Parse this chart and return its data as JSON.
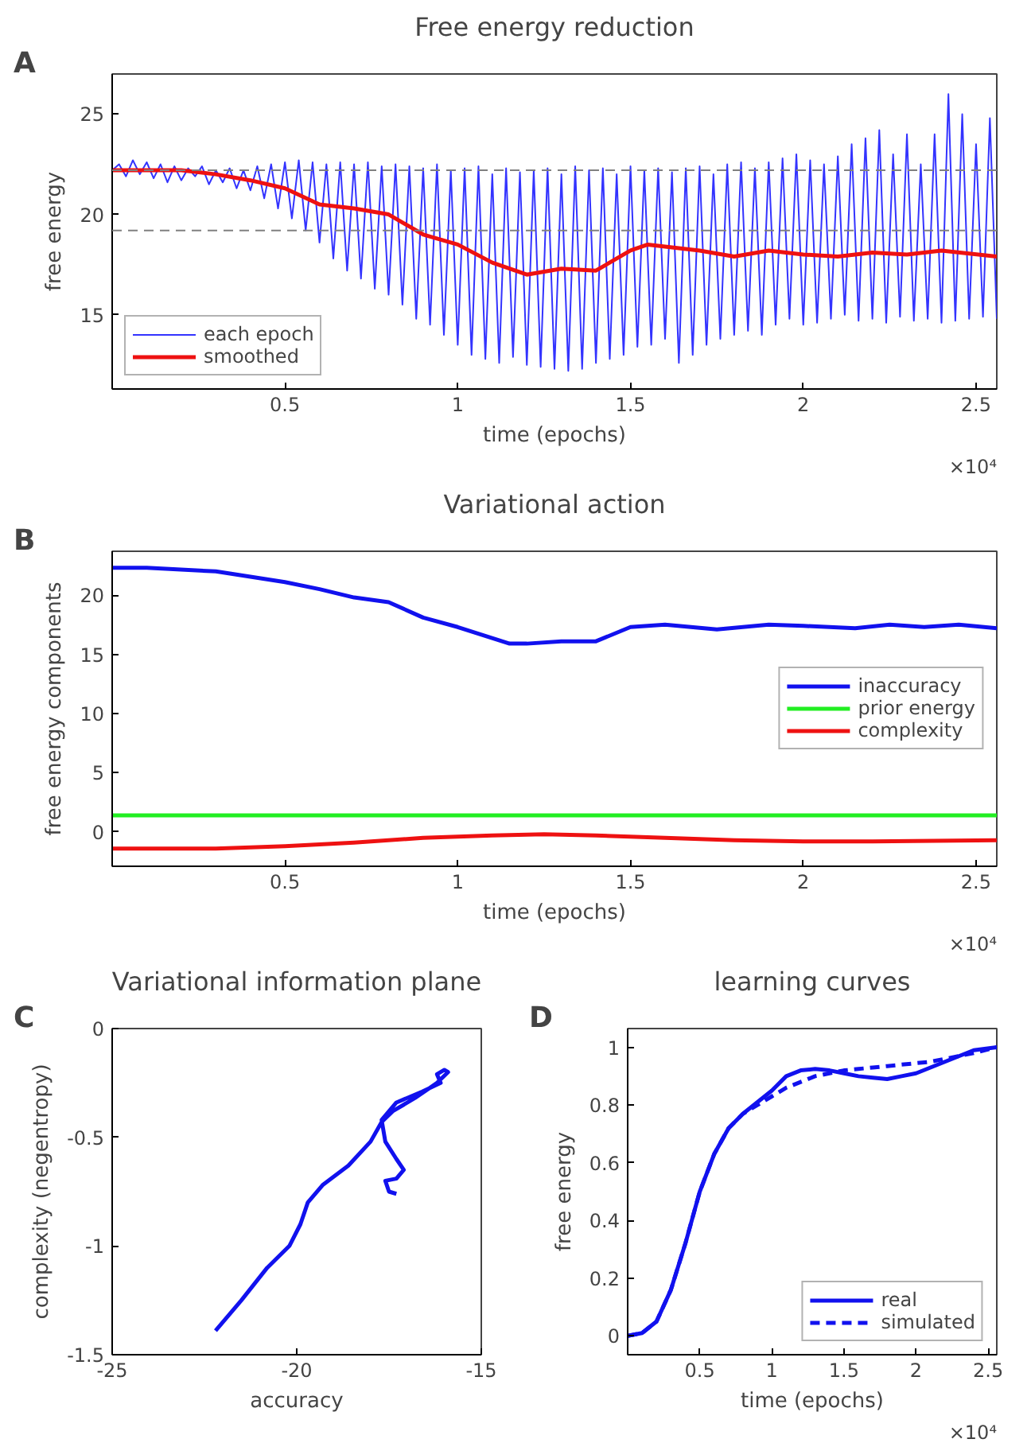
{
  "chart_data": [
    {
      "type": "line",
      "title": "Free energy reduction",
      "xlabel": "time (epochs)",
      "ylabel": "free energy",
      "annotations": [
        "A",
        "×10⁴"
      ],
      "xlim": [
        0,
        2.56
      ],
      "xticks": [
        0.5,
        1,
        1.5,
        2,
        2.5
      ],
      "ylim": [
        11.3,
        27
      ],
      "yticks": [
        15,
        20,
        25
      ],
      "grid": false,
      "legend": "bottom left",
      "ref_lines": [
        {
          "axis": "y",
          "value": 22.2,
          "color": "#808080",
          "line_style": "dashed"
        },
        {
          "axis": "y",
          "value": 19.2,
          "color": "#808080",
          "line_style": "dashed"
        }
      ],
      "series": [
        {
          "name": "each epoch",
          "color": "#3333ff",
          "line_style": "solid",
          "x": [
            0,
            0.02,
            0.04,
            0.06,
            0.08,
            0.1,
            0.12,
            0.14,
            0.16,
            0.18,
            0.2,
            0.22,
            0.24,
            0.26,
            0.28,
            0.3,
            0.32,
            0.34,
            0.36,
            0.38,
            0.4,
            0.42,
            0.44,
            0.46,
            0.48,
            0.5,
            0.52,
            0.54,
            0.56,
            0.58,
            0.6,
            0.62,
            0.64,
            0.66,
            0.68,
            0.7,
            0.72,
            0.74,
            0.76,
            0.78,
            0.8,
            0.82,
            0.84,
            0.86,
            0.88,
            0.9,
            0.92,
            0.94,
            0.96,
            0.98,
            1.0,
            1.02,
            1.04,
            1.06,
            1.08,
            1.1,
            1.12,
            1.14,
            1.16,
            1.18,
            1.2,
            1.22,
            1.24,
            1.26,
            1.28,
            1.3,
            1.32,
            1.34,
            1.36,
            1.38,
            1.4,
            1.42,
            1.44,
            1.46,
            1.48,
            1.5,
            1.52,
            1.54,
            1.56,
            1.58,
            1.6,
            1.62,
            1.64,
            1.66,
            1.68,
            1.7,
            1.72,
            1.74,
            1.76,
            1.78,
            1.8,
            1.82,
            1.84,
            1.86,
            1.88,
            1.9,
            1.92,
            1.94,
            1.96,
            1.98,
            2.0,
            2.02,
            2.04,
            2.06,
            2.08,
            2.1,
            2.12,
            2.14,
            2.16,
            2.18,
            2.2,
            2.22,
            2.24,
            2.26,
            2.28,
            2.3,
            2.32,
            2.34,
            2.36,
            2.38,
            2.4,
            2.42,
            2.44,
            2.46,
            2.48,
            2.5,
            2.52,
            2.54,
            2.56
          ],
          "values": [
            22.2,
            22.5,
            21.9,
            22.7,
            22.0,
            22.6,
            21.8,
            22.5,
            21.6,
            22.4,
            21.7,
            22.3,
            21.9,
            22.4,
            21.5,
            22.2,
            21.6,
            22.3,
            21.3,
            22.2,
            21.2,
            22.4,
            20.8,
            22.5,
            20.3,
            22.6,
            19.8,
            22.7,
            19.2,
            22.6,
            18.6,
            22.5,
            17.8,
            22.6,
            17.2,
            22.5,
            16.8,
            22.6,
            16.3,
            22.4,
            16.0,
            22.5,
            15.5,
            22.4,
            14.8,
            22.3,
            14.5,
            22.5,
            14.0,
            22.2,
            13.5,
            22.3,
            13.0,
            22.4,
            12.8,
            22.0,
            12.6,
            22.3,
            12.9,
            22.1,
            12.5,
            22.2,
            12.4,
            22.3,
            12.3,
            22.0,
            12.2,
            22.4,
            12.3,
            22.2,
            12.6,
            22.3,
            12.8,
            22.0,
            13.0,
            22.4,
            13.4,
            22.2,
            13.5,
            22.3,
            13.8,
            22.1,
            12.6,
            22.3,
            13.0,
            22.4,
            13.5,
            22.0,
            13.8,
            22.5,
            14.0,
            22.6,
            14.2,
            22.3,
            14.0,
            22.6,
            14.5,
            22.8,
            14.8,
            23.0,
            14.5,
            22.7,
            14.6,
            22.5,
            14.8,
            22.9,
            15.0,
            23.5,
            14.7,
            23.8,
            14.8,
            24.2,
            14.6,
            23.0,
            14.9,
            24.0,
            14.7,
            22.5,
            14.8,
            24.0,
            14.6,
            26.0,
            14.7,
            25.0,
            14.8,
            23.5,
            14.9,
            24.8,
            14.8
          ]
        },
        {
          "name": "smoothed",
          "color": "#ee1111",
          "line_style": "solid",
          "x": [
            0,
            0.1,
            0.2,
            0.3,
            0.4,
            0.5,
            0.6,
            0.7,
            0.8,
            0.9,
            1.0,
            1.1,
            1.2,
            1.3,
            1.4,
            1.5,
            1.55,
            1.6,
            1.7,
            1.8,
            1.9,
            2.0,
            2.1,
            2.2,
            2.3,
            2.4,
            2.56
          ],
          "values": [
            22.2,
            22.2,
            22.2,
            22.0,
            21.7,
            21.3,
            20.5,
            20.3,
            20.0,
            19.0,
            18.5,
            17.6,
            17.0,
            17.3,
            17.2,
            18.2,
            18.5,
            18.4,
            18.2,
            17.9,
            18.2,
            18.0,
            17.9,
            18.1,
            18.0,
            18.2,
            17.9
          ]
        }
      ]
    },
    {
      "type": "line",
      "title": "Variational action",
      "xlabel": "time (epochs)",
      "ylabel": "free energy components",
      "annotations": [
        "B",
        "×10⁴"
      ],
      "xlim": [
        0,
        2.56
      ],
      "xticks": [
        0.5,
        1,
        1.5,
        2,
        2.5
      ],
      "ylim": [
        -2.9,
        23.7
      ],
      "yticks": [
        0,
        5,
        10,
        15,
        20
      ],
      "grid": false,
      "legend": "right",
      "series": [
        {
          "name": "inaccuracy",
          "color": "#1111ee",
          "line_style": "solid",
          "x": [
            0,
            0.1,
            0.3,
            0.5,
            0.6,
            0.7,
            0.8,
            0.9,
            1.0,
            1.15,
            1.2,
            1.3,
            1.4,
            1.5,
            1.6,
            1.75,
            1.9,
            2.0,
            2.15,
            2.25,
            2.35,
            2.45,
            2.56
          ],
          "values": [
            22.3,
            22.3,
            22.0,
            21.1,
            20.5,
            19.8,
            19.4,
            18.1,
            17.3,
            15.9,
            15.9,
            16.1,
            16.1,
            17.3,
            17.5,
            17.1,
            17.5,
            17.4,
            17.2,
            17.5,
            17.3,
            17.5,
            17.2
          ]
        },
        {
          "name": "prior energy",
          "color": "#22ee22",
          "line_style": "solid",
          "x": [
            0,
            1.28,
            2.56
          ],
          "values": [
            1.4,
            1.4,
            1.4
          ]
        },
        {
          "name": "complexity",
          "color": "#ee1111",
          "line_style": "solid",
          "x": [
            0,
            0.3,
            0.5,
            0.7,
            0.9,
            1.1,
            1.25,
            1.4,
            1.6,
            1.8,
            2.0,
            2.2,
            2.56
          ],
          "values": [
            -1.4,
            -1.4,
            -1.2,
            -0.9,
            -0.5,
            -0.3,
            -0.2,
            -0.3,
            -0.5,
            -0.7,
            -0.8,
            -0.8,
            -0.7
          ]
        }
      ]
    },
    {
      "type": "line",
      "title": "Variational information plane",
      "xlabel": "accuracy",
      "ylabel": "complexity (negentropy)",
      "annotations": [
        "C"
      ],
      "xlim": [
        -25,
        -15
      ],
      "xticks": [
        -25,
        -20,
        -15
      ],
      "ylim": [
        -1.5,
        0
      ],
      "yticks": [
        -1.5,
        -1,
        -0.5,
        0
      ],
      "grid": false,
      "series": [
        {
          "color": "#1111ee",
          "line_style": "solid",
          "x": [
            -22.2,
            -21.5,
            -20.8,
            -20.2,
            -19.9,
            -19.7,
            -19.3,
            -18.6,
            -18.0,
            -17.7,
            -17.4,
            -16.8,
            -16.2,
            -15.9,
            -16.0,
            -16.2,
            -16.1,
            -16.6,
            -17.3,
            -17.7,
            -17.6,
            -17.3,
            -17.1,
            -17.3,
            -17.6,
            -17.5,
            -17.3
          ],
          "values": [
            -1.39,
            -1.25,
            -1.1,
            -1.0,
            -0.9,
            -0.8,
            -0.72,
            -0.63,
            -0.52,
            -0.43,
            -0.38,
            -0.32,
            -0.25,
            -0.2,
            -0.19,
            -0.21,
            -0.25,
            -0.29,
            -0.34,
            -0.42,
            -0.52,
            -0.6,
            -0.65,
            -0.69,
            -0.7,
            -0.75,
            -0.76
          ]
        }
      ]
    },
    {
      "type": "line",
      "title": "learning curves",
      "xlabel": "time (epochs)",
      "ylabel": "free energy",
      "annotations": [
        "D",
        "×10⁴"
      ],
      "xlim": [
        0,
        2.56
      ],
      "xticks": [
        0.5,
        1,
        1.5,
        2,
        2.5
      ],
      "ylim": [
        -0.065,
        1.065
      ],
      "yticks": [
        0,
        0.2,
        0.4,
        0.6,
        0.8,
        1
      ],
      "grid": false,
      "legend": "bottom right",
      "series": [
        {
          "name": "real",
          "color": "#1111ee",
          "line_style": "solid",
          "x": [
            0,
            0.1,
            0.2,
            0.3,
            0.4,
            0.5,
            0.6,
            0.7,
            0.8,
            0.9,
            1.0,
            1.1,
            1.2,
            1.3,
            1.4,
            1.5,
            1.6,
            1.7,
            1.8,
            1.9,
            2.0,
            2.1,
            2.2,
            2.3,
            2.4,
            2.56
          ],
          "values": [
            0,
            0.01,
            0.05,
            0.16,
            0.32,
            0.5,
            0.63,
            0.72,
            0.77,
            0.81,
            0.85,
            0.9,
            0.92,
            0.925,
            0.92,
            0.91,
            0.9,
            0.895,
            0.89,
            0.9,
            0.91,
            0.93,
            0.95,
            0.97,
            0.99,
            1.0
          ]
        },
        {
          "name": "simulated",
          "color": "#1111ee",
          "line_style": "dashed",
          "x": [
            0,
            0.1,
            0.2,
            0.3,
            0.4,
            0.5,
            0.6,
            0.7,
            0.8,
            0.9,
            1.0,
            1.1,
            1.2,
            1.3,
            1.4,
            1.5,
            1.6,
            1.7,
            1.8,
            1.9,
            2.0,
            2.1,
            2.2,
            2.3,
            2.4,
            2.56
          ],
          "values": [
            0,
            0.01,
            0.05,
            0.16,
            0.32,
            0.5,
            0.63,
            0.72,
            0.77,
            0.8,
            0.83,
            0.86,
            0.88,
            0.9,
            0.91,
            0.92,
            0.925,
            0.93,
            0.935,
            0.94,
            0.945,
            0.95,
            0.96,
            0.97,
            0.98,
            1.0
          ]
        }
      ]
    }
  ]
}
